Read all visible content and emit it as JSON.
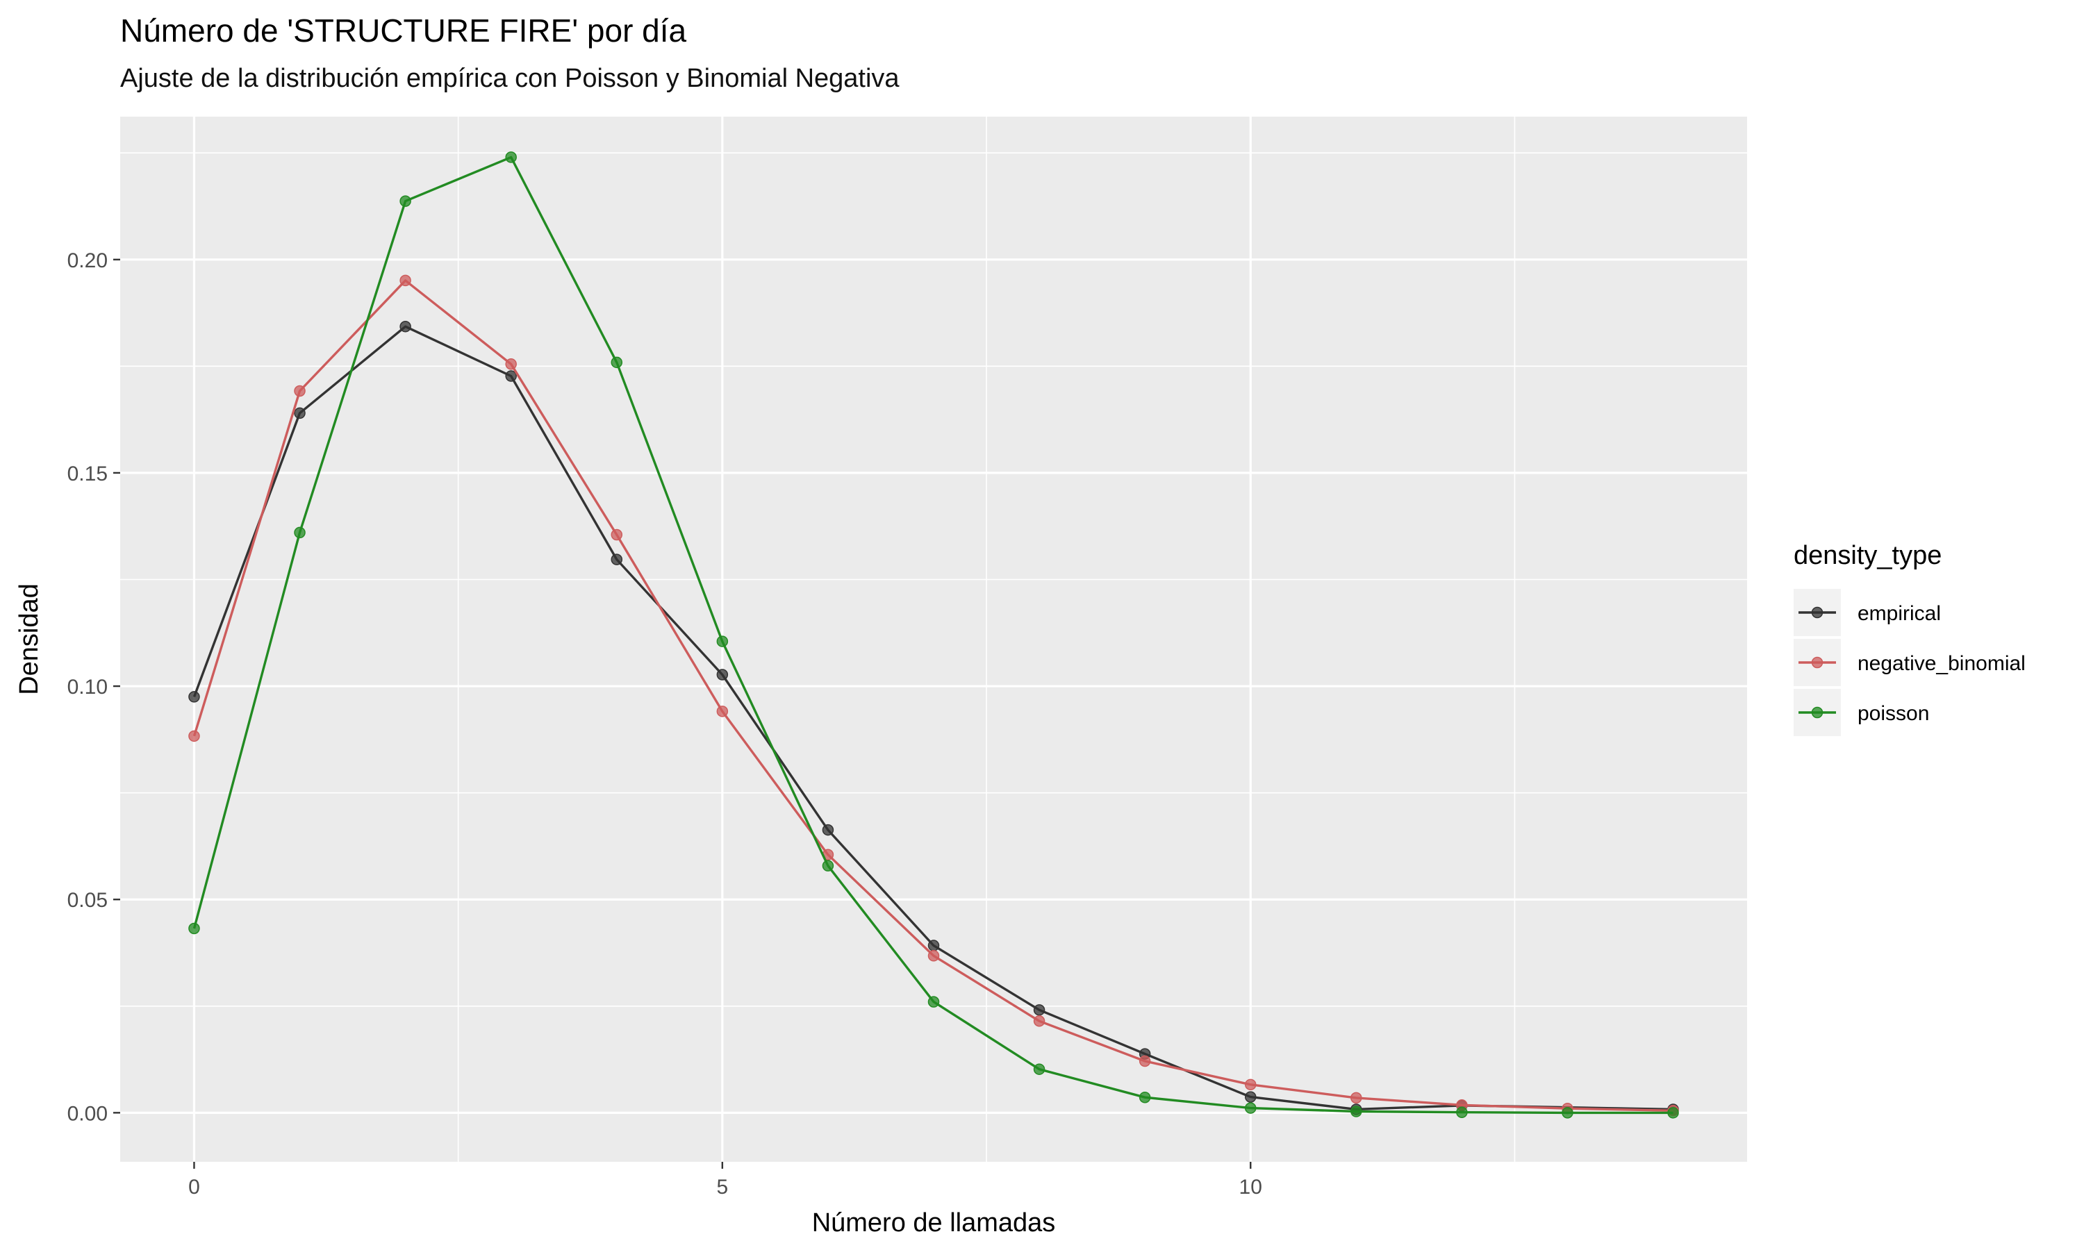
{
  "title": "Número de 'STRUCTURE FIRE' por día",
  "subtitle": "Ajuste de la distribución empírica con Poisson y Binomial Negativa",
  "chart_data": {
    "type": "line",
    "title": "Número de 'STRUCTURE FIRE' por día",
    "subtitle": "Ajuste de la distribución empírica con Poisson y Binomial Negativa",
    "xlabel": "Número de llamadas",
    "ylabel": "Densidad",
    "xlim": [
      -0.7,
      14.7
    ],
    "ylim": [
      -0.0115,
      0.2335
    ],
    "x_ticks": [
      0,
      5,
      10
    ],
    "x_tick_labels": [
      "0",
      "5",
      "10"
    ],
    "y_ticks": [
      0.0,
      0.05,
      0.1,
      0.15,
      0.2
    ],
    "y_tick_labels": [
      "0.00",
      "0.05",
      "0.10",
      "0.15",
      "0.20"
    ],
    "grid": true,
    "panel_background": "#ebebeb",
    "legend": {
      "title": "density_type",
      "position": "right"
    },
    "series": [
      {
        "name": "empirical",
        "color": "#333333",
        "x": [
          0,
          1,
          2,
          3,
          4,
          5,
          6,
          7,
          8,
          9,
          10,
          11,
          12,
          14
        ],
        "values": [
          0.0975,
          0.164,
          0.1843,
          0.1727,
          0.1297,
          0.1027,
          0.0663,
          0.0392,
          0.0241,
          0.0138,
          0.0037,
          0.0008,
          0.0017,
          0.0008
        ]
      },
      {
        "name": "negative_binomial",
        "color": "#cd5c5c",
        "x": [
          0,
          1,
          2,
          3,
          4,
          5,
          6,
          7,
          8,
          9,
          10,
          11,
          12,
          13,
          14
        ],
        "values": [
          0.0883,
          0.1692,
          0.1951,
          0.1755,
          0.1355,
          0.0941,
          0.0605,
          0.0368,
          0.0215,
          0.0121,
          0.0066,
          0.0035,
          0.0018,
          0.001,
          0.0005
        ]
      },
      {
        "name": "poisson",
        "color": "#228b22",
        "x": [
          0,
          1,
          2,
          3,
          4,
          5,
          6,
          7,
          8,
          9,
          10,
          11,
          12,
          13,
          14
        ],
        "values": [
          0.0432,
          0.136,
          0.2137,
          0.224,
          0.1759,
          0.1105,
          0.0579,
          0.026,
          0.0102,
          0.0036,
          0.0011,
          0.0003,
          0.0001,
          0.0,
          0.0
        ]
      }
    ]
  }
}
